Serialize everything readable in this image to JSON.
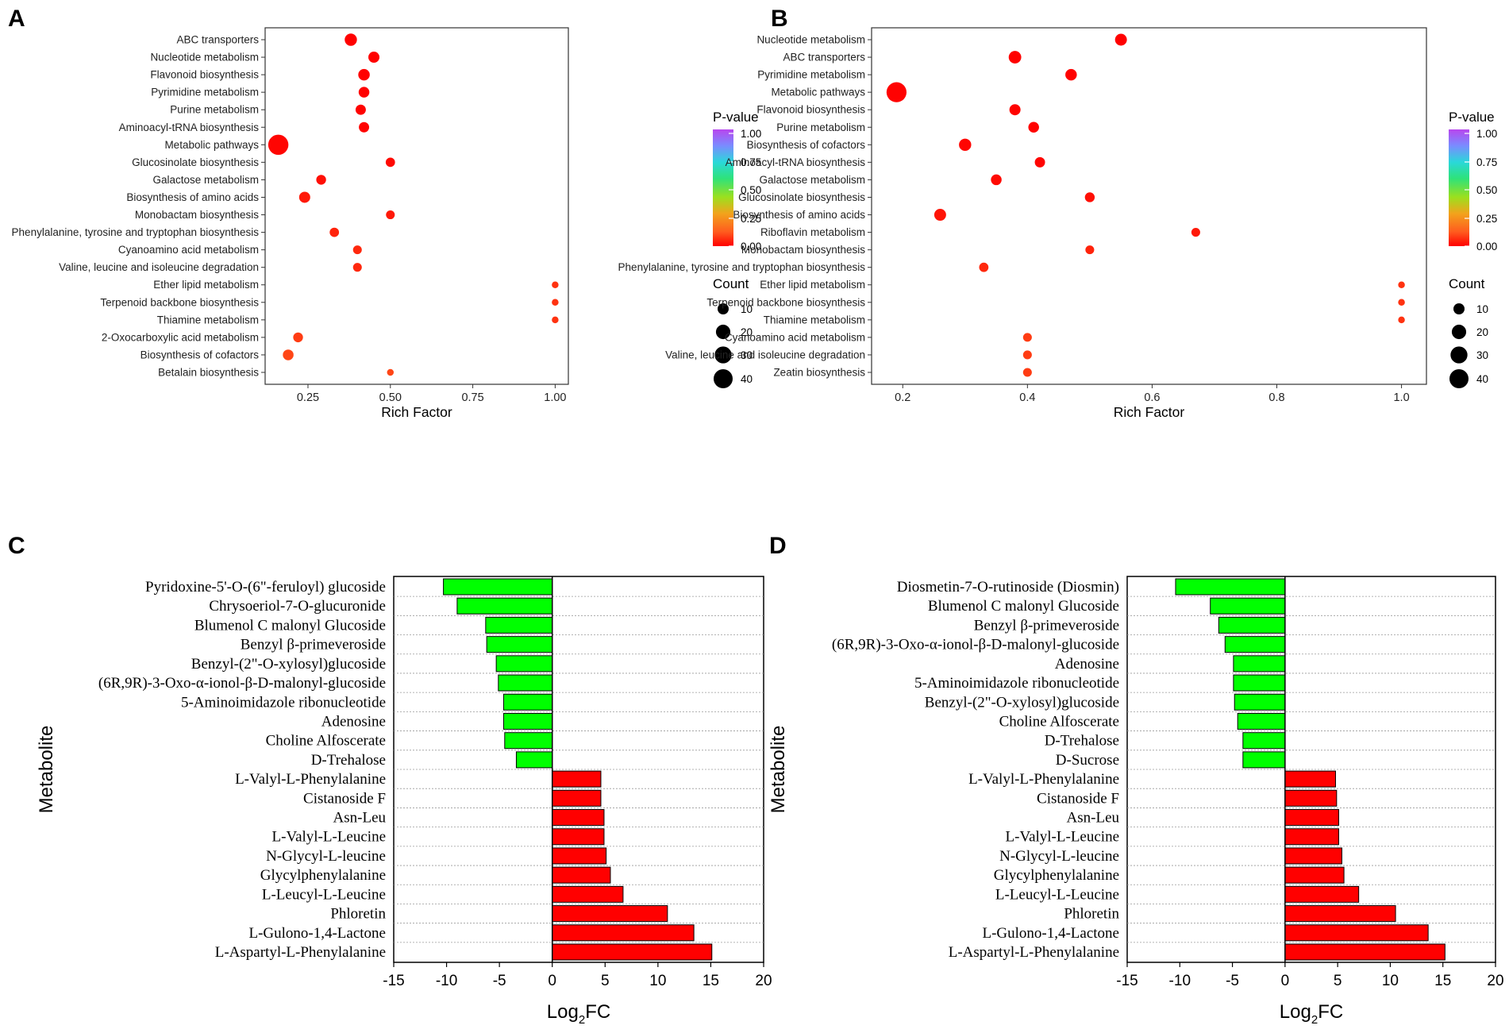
{
  "figure": {
    "panel_labels": [
      "A",
      "B",
      "C",
      "D"
    ]
  },
  "chart_data": [
    {
      "panel": "A",
      "type": "scatter",
      "subtype": "bubble",
      "xlabel": "Rich Factor",
      "ylabel": "",
      "xlim": [
        0.12,
        1.04
      ],
      "xticks": [
        0.25,
        0.5,
        0.75,
        1.0
      ],
      "xtick_labels": [
        "0.25",
        "0.50",
        "0.75",
        "1.00"
      ],
      "categories": [
        "ABC transporters",
        "Nucleotide metabolism",
        "Flavonoid biosynthesis",
        "Pyrimidine metabolism",
        "Purine metabolism",
        "Aminoacyl-tRNA biosynthesis",
        "Metabolic pathways",
        "Glucosinolate biosynthesis",
        "Galactose metabolism",
        "Biosynthesis of amino acids",
        "Monobactam biosynthesis",
        "Phenylalanine, tyrosine and tryptophan biosynthesis",
        "Cyanoamino acid metabolism",
        "Valine, leucine and isoleucine degradation",
        "Ether lipid metabolism",
        "Terpenoid backbone biosynthesis",
        "Thiamine metabolism",
        "2-Oxocarboxylic acid metabolism",
        "Biosynthesis of cofactors",
        "Betalain biosynthesis"
      ],
      "rich_factor": [
        0.38,
        0.45,
        0.42,
        0.42,
        0.41,
        0.42,
        0.16,
        0.5,
        0.29,
        0.24,
        0.5,
        0.33,
        0.4,
        0.4,
        1.0,
        1.0,
        1.0,
        0.22,
        0.19,
        0.5
      ],
      "count": [
        13,
        10,
        11,
        9,
        8,
        8,
        46,
        6,
        7,
        10,
        5,
        6,
        5,
        5,
        2,
        2,
        2,
        7,
        9,
        2
      ],
      "p_value": [
        0.002,
        0.003,
        0.003,
        0.004,
        0.005,
        0.006,
        0.01,
        0.02,
        0.03,
        0.05,
        0.05,
        0.07,
        0.08,
        0.08,
        0.1,
        0.1,
        0.1,
        0.12,
        0.14,
        0.14
      ],
      "legend": {
        "color_title": "P-value",
        "color_ticks": [
          "1.00",
          "0.75",
          "0.50",
          "0.25",
          "0.00"
        ],
        "size_title": "Count",
        "size_ticks": [
          "10",
          "20",
          "30",
          "40"
        ]
      }
    },
    {
      "panel": "B",
      "type": "scatter",
      "subtype": "bubble",
      "xlabel": "Rich Factor",
      "ylabel": "",
      "xlim": [
        0.15,
        1.04
      ],
      "xticks": [
        0.2,
        0.4,
        0.6,
        0.8,
        1.0
      ],
      "xtick_labels": [
        "0.2",
        "0.4",
        "0.6",
        "0.8",
        "1.0"
      ],
      "categories": [
        "Nucleotide metabolism",
        "ABC transporters",
        "Pyrimidine metabolism",
        "Metabolic pathways",
        "Flavonoid biosynthesis",
        "Purine metabolism",
        "Biosynthesis of cofactors",
        "Aminoacyl-tRNA biosynthesis",
        "Galactose metabolism",
        "Glucosinolate biosynthesis",
        "Biosynthesis of amino acids",
        "Riboflavin metabolism",
        "Monobactam biosynthesis",
        "Phenylalanine, tyrosine and tryptophan biosynthesis",
        "Ether lipid metabolism",
        "Terpenoid backbone biosynthesis",
        "Thiamine metabolism",
        "Cyanoamino acid metabolism",
        "Valine, leucine and isoleucine degradation",
        "Zeatin biosynthesis"
      ],
      "rich_factor": [
        0.55,
        0.38,
        0.47,
        0.19,
        0.38,
        0.41,
        0.3,
        0.42,
        0.35,
        0.5,
        0.26,
        0.67,
        0.5,
        0.33,
        1.0,
        1.0,
        1.0,
        0.4,
        0.4,
        0.4
      ],
      "count": [
        12,
        14,
        11,
        45,
        10,
        9,
        13,
        8,
        9,
        7,
        12,
        5,
        5,
        6,
        2,
        2,
        2,
        5,
        5,
        5
      ],
      "p_value": [
        0.002,
        0.002,
        0.003,
        0.004,
        0.005,
        0.006,
        0.01,
        0.01,
        0.02,
        0.03,
        0.04,
        0.05,
        0.07,
        0.08,
        0.1,
        0.1,
        0.1,
        0.12,
        0.12,
        0.12
      ],
      "legend": {
        "color_title": "P-value",
        "color_ticks": [
          "1.00",
          "0.75",
          "0.50",
          "0.25",
          "0.00"
        ],
        "size_title": "Count",
        "size_ticks": [
          "10",
          "20",
          "30",
          "40"
        ]
      }
    },
    {
      "panel": "C",
      "type": "bar",
      "orientation": "horizontal",
      "xlabel": "Log2FC",
      "xlabel_parts": {
        "main": "Log",
        "sub": "2",
        "tail": "FC"
      },
      "ylabel": "Metabolite",
      "xlim": [
        -15,
        20
      ],
      "xticks": [
        -15,
        -10,
        -5,
        0,
        5,
        10,
        15,
        20
      ],
      "categories": [
        "Pyridoxine-5'-O-(6\"-feruloyl) glucoside",
        "Chrysoeriol-7-O-glucuronide",
        "Blumenol C malonyl Glucoside",
        "Benzyl β-primeveroside",
        "Benzyl-(2\"-O-xylosyl)glucoside",
        "(6R,9R)-3-Oxo-α-ionol-β-D-malonyl-glucoside",
        "5-Aminoimidazole ribonucleotide",
        "Adenosine",
        "Choline Alfoscerate",
        "D-Trehalose",
        "L-Valyl-L-Phenylalanine",
        "Cistanoside F",
        "Asn-Leu",
        "L-Valyl-L-Leucine",
        "N-Glycyl-L-leucine",
        "Glycylphenylalanine",
        "L-Leucyl-L-Leucine",
        "Phloretin",
        "L-Gulono-1,4-Lactone",
        "L-Aspartyl-L-Phenylalanine"
      ],
      "values": [
        -10.3,
        -9.0,
        -6.3,
        -6.2,
        -5.3,
        -5.1,
        -4.6,
        -4.6,
        -4.5,
        -3.4,
        4.6,
        4.6,
        4.9,
        4.9,
        5.1,
        5.5,
        6.7,
        10.9,
        13.4,
        15.1
      ],
      "colors": {
        "negative": "#00ff00",
        "positive": "#ff0000"
      }
    },
    {
      "panel": "D",
      "type": "bar",
      "orientation": "horizontal",
      "xlabel": "Log2FC",
      "xlabel_parts": {
        "main": "Log",
        "sub": "2",
        "tail": "FC"
      },
      "ylabel": "Metabolite",
      "xlim": [
        -15,
        20
      ],
      "xticks": [
        -15,
        -10,
        -5,
        0,
        5,
        10,
        15,
        20
      ],
      "categories": [
        "Diosmetin-7-O-rutinoside (Diosmin)",
        "Blumenol C malonyl Glucoside",
        "Benzyl β-primeveroside",
        "(6R,9R)-3-Oxo-α-ionol-β-D-malonyl-glucoside",
        "Adenosine",
        "5-Aminoimidazole ribonucleotide",
        "Benzyl-(2\"-O-xylosyl)glucoside",
        "Choline Alfoscerate",
        "D-Trehalose",
        "D-Sucrose",
        "L-Valyl-L-Phenylalanine",
        "Cistanoside F",
        "Asn-Leu",
        "L-Valyl-L-Leucine",
        "N-Glycyl-L-leucine",
        "Glycylphenylalanine",
        "L-Leucyl-L-Leucine",
        "Phloretin",
        "L-Gulono-1,4-Lactone",
        "L-Aspartyl-L-Phenylalanine"
      ],
      "values": [
        -10.4,
        -7.1,
        -6.3,
        -5.7,
        -4.9,
        -4.9,
        -4.8,
        -4.5,
        -4.0,
        -4.0,
        4.8,
        4.9,
        5.1,
        5.1,
        5.4,
        5.6,
        7.0,
        10.5,
        13.6,
        15.2
      ],
      "colors": {
        "negative": "#00ff00",
        "positive": "#ff0000"
      }
    }
  ]
}
